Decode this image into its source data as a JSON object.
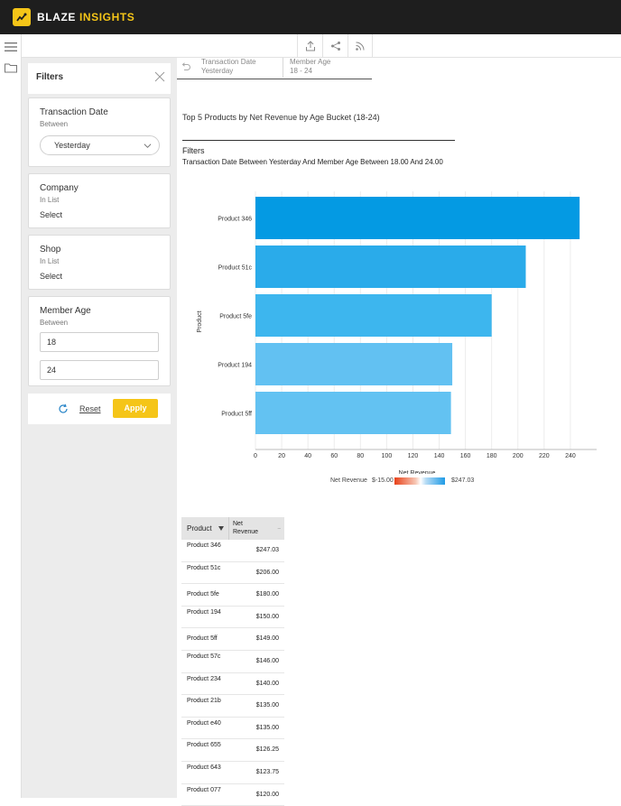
{
  "app": {
    "brand_primary": "BLAZE",
    "brand_secondary": "INSIGHTS",
    "brand_color": "#f5c518"
  },
  "toolbar": {
    "icons": [
      "upload-icon",
      "share-icon",
      "rss-icon"
    ]
  },
  "filters": {
    "title": "Filters",
    "transaction_date": {
      "title": "Transaction Date",
      "operator": "Between",
      "selected": "Yesterday"
    },
    "company": {
      "title": "Company",
      "operator": "In List",
      "value": "Select"
    },
    "shop": {
      "title": "Shop",
      "operator": "In List",
      "value": "Select"
    },
    "member_age": {
      "title": "Member Age",
      "operator": "Between",
      "min": "18",
      "max": "24"
    },
    "reset_label": "Reset",
    "apply_label": "Apply"
  },
  "breadcrumb": [
    {
      "key": "Transaction Date",
      "value": "Yesterday"
    },
    {
      "key": "Member Age",
      "value": "18 - 24"
    }
  ],
  "report": {
    "title": "Top 5 Products by Net Revenue by Age Bucket (18-24)",
    "filters_label": "Filters",
    "filters_text": "Transaction Date Between Yesterday And Member Age Between 18.00 And 24.00"
  },
  "chart_data": {
    "type": "bar",
    "orientation": "horizontal",
    "categories": [
      "Product 346",
      "Product 51c",
      "Product 5fe",
      "Product 194",
      "Product 5ff"
    ],
    "values": [
      247.03,
      206.0,
      180.0,
      150.0,
      149.0
    ],
    "colors": [
      "#049ae3",
      "#2aabea",
      "#3db6ee",
      "#62c1f2",
      "#63c2f2"
    ],
    "xlabel": "Net Revenue",
    "ylabel": "Product",
    "xlim": [
      0,
      260
    ],
    "xticks": [
      0,
      20,
      40,
      60,
      80,
      100,
      120,
      140,
      160,
      180,
      200,
      220,
      240
    ],
    "grid": true,
    "legend": {
      "label": "Net Revenue",
      "min": "$-15.00",
      "max": "$247.03"
    }
  },
  "table": {
    "headers": [
      "Product",
      "Net Revenue"
    ],
    "rows": [
      {
        "product": "Product 346",
        "value": "$247.03"
      },
      {
        "product": "Product 51c",
        "value": "$206.00"
      },
      {
        "product": "Product 5fe",
        "value": "$180.00"
      },
      {
        "product": "Product 194",
        "value": "$150.00"
      },
      {
        "product": "Product 5ff",
        "value": "$149.00"
      },
      {
        "product": "Product 57c",
        "value": "$146.00"
      },
      {
        "product": "Product 234",
        "value": "$140.00"
      },
      {
        "product": "Product 21b",
        "value": "$135.00"
      },
      {
        "product": "Product e40",
        "value": "$135.00"
      },
      {
        "product": "Product 655",
        "value": "$126.25"
      },
      {
        "product": "Product 643",
        "value": "$123.75"
      },
      {
        "product": "Product 077",
        "value": "$120.00"
      }
    ]
  }
}
